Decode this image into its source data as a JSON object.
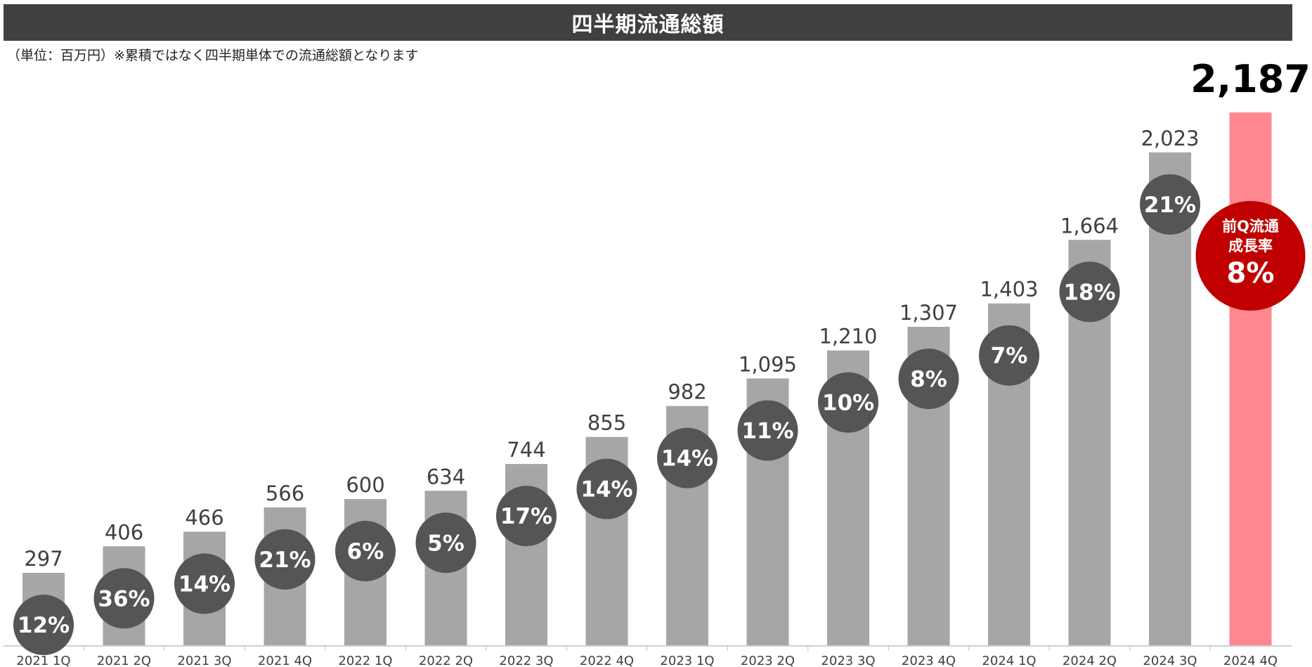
{
  "header": {
    "title": "四半期流通総額",
    "unit_note": "（単位：百万円）※累積ではなく四半期単体での流通総額となります"
  },
  "colors": {
    "header_bg": "#404040",
    "bar": "#a6a6a6",
    "bar_highlight": "#ff8790",
    "growth_circle": "#555555",
    "callout_circle": "#c00000",
    "axis": "#bfbfbf"
  },
  "chart_data": {
    "type": "bar",
    "title": "四半期流通総額",
    "categories": [
      "2021 1Q",
      "2021 2Q",
      "2021 3Q",
      "2021 4Q",
      "2022 1Q",
      "2022 2Q",
      "2022 3Q",
      "2022 4Q",
      "2023 1Q",
      "2023 2Q",
      "2023 3Q",
      "2023 4Q",
      "2024 1Q",
      "2024 2Q",
      "2024 3Q",
      "2024 4Q"
    ],
    "series": [
      {
        "values": [
          297,
          406,
          466,
          566,
          600,
          634,
          744,
          855,
          982,
          1095,
          1210,
          1307,
          1403,
          1664,
          2023,
          2187
        ]
      }
    ],
    "value_labels": [
      "297",
      "406",
      "466",
      "566",
      "600",
      "634",
      "744",
      "855",
      "982",
      "1,095",
      "1,210",
      "1,307",
      "1,403",
      "1,664",
      "2,023",
      "2,187"
    ],
    "growth_labels": [
      "12%",
      "36%",
      "14%",
      "21%",
      "6%",
      "5%",
      "17%",
      "14%",
      "14%",
      "11%",
      "10%",
      "8%",
      "7%",
      "18%",
      "21%"
    ],
    "highlight_index": 15,
    "callout": {
      "line1": "前Q流通",
      "line2": "成長率",
      "value": "8%"
    },
    "ylim": [
      0,
      2187
    ],
    "grid": false
  }
}
